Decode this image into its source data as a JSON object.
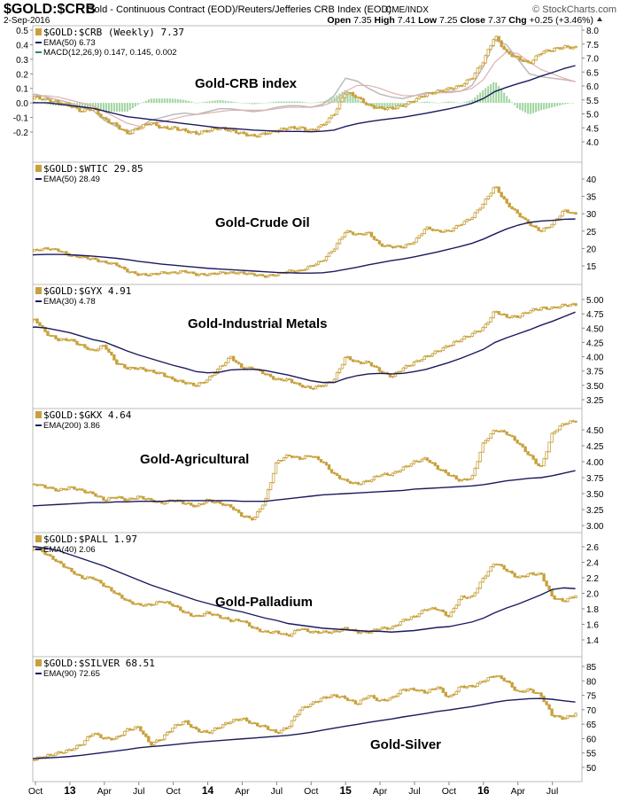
{
  "header": {
    "symbol": "$GOLD:$CRB",
    "description": "Gold - Continuous Contract (EOD)/Reuters/Jefferies CRB Index (EOD)",
    "exchange": "CME/INDX",
    "brand": "© StockCharts.com",
    "date": "2-Sep-2016",
    "ohlc": {
      "open_label": "Open",
      "open": "7.35",
      "high_label": "High",
      "high": "7.41",
      "low_label": "Low",
      "low": "7.25",
      "close_label": "Close",
      "close": "7.37",
      "chg_label": "Chg",
      "chg": "+0.25 (+3.46%)"
    }
  },
  "x_axis": {
    "ticks": [
      "Oct",
      "13",
      "Apr",
      "Jul",
      "Oct",
      "14",
      "Apr",
      "Jul",
      "Oct",
      "15",
      "Apr",
      "Jul",
      "Oct",
      "16",
      "Apr",
      "Jul"
    ],
    "year_ticks": [
      "13",
      "14",
      "15",
      "16"
    ],
    "range": [
      "Sep 2012",
      "Sep 2016"
    ]
  },
  "colors": {
    "price": "#c8a13c",
    "ema": "#1a1a5e",
    "macd_hist": "#9fd49f",
    "macd_line": "#bbbbbb",
    "signal_line": "#e0b0b0",
    "grid": "#cccccc"
  },
  "chart_data": [
    {
      "type": "candlestick",
      "title": "Gold-CRB index",
      "legend": [
        "$GOLD:$CRB (Weekly) 7.37",
        "EMA(50) 6.73",
        "MACD(12,26,9) 0.147, 0.145, 0.002"
      ],
      "ylim": [
        4.0,
        8.0
      ],
      "y_ticks": [
        "8.0",
        "7.5",
        "7.0",
        "6.5",
        "6.0",
        "5.5",
        "5.0",
        "4.5",
        "4.0"
      ],
      "left_ylim": [
        -0.2,
        0.5
      ],
      "left_ticks": [
        "0.5",
        "0.4",
        "0.3",
        "0.2",
        "0.1",
        "0.0",
        "-0.1",
        "-0.2"
      ],
      "price": [
        5.5,
        5.6,
        5.5,
        5.4,
        5.3,
        5.1,
        5.2,
        4.8,
        4.6,
        4.3,
        4.5,
        4.7,
        4.5,
        4.5,
        4.4,
        4.3,
        4.4,
        4.5,
        4.4,
        4.3,
        4.2,
        4.3,
        4.4,
        4.5,
        4.5,
        4.4,
        4.6,
        5.0,
        5.8,
        5.6,
        5.3,
        5.2,
        5.2,
        5.3,
        5.5,
        5.7,
        5.8,
        5.9,
        6.0,
        6.3,
        6.9,
        7.8,
        7.2,
        7.0,
        6.8,
        7.2,
        7.3,
        7.4,
        7.37
      ],
      "ema": [
        5.4,
        5.4,
        5.4,
        5.35,
        5.3,
        5.25,
        5.2,
        5.1,
        5.0,
        4.9,
        4.85,
        4.8,
        4.75,
        4.7,
        4.65,
        4.6,
        4.55,
        4.5,
        4.48,
        4.45,
        4.42,
        4.4,
        4.38,
        4.37,
        4.37,
        4.36,
        4.38,
        4.42,
        4.55,
        4.65,
        4.72,
        4.78,
        4.83,
        4.88,
        4.95,
        5.02,
        5.1,
        5.18,
        5.27,
        5.38,
        5.55,
        5.8,
        5.95,
        6.08,
        6.2,
        6.35,
        6.48,
        6.62,
        6.73
      ],
      "macd": [
        0.05,
        0.06,
        0.04,
        0.02,
        0,
        -0.03,
        -0.05,
        -0.12,
        -0.16,
        -0.2,
        -0.17,
        -0.12,
        -0.1,
        -0.08,
        -0.07,
        -0.08,
        -0.06,
        -0.04,
        -0.04,
        -0.05,
        -0.06,
        -0.05,
        -0.03,
        -0.02,
        -0.02,
        -0.03,
        -0.01,
        0.05,
        0.17,
        0.15,
        0.1,
        0.06,
        0.04,
        0.03,
        0.05,
        0.07,
        0.07,
        0.08,
        0.08,
        0.12,
        0.25,
        0.43,
        0.4,
        0.3,
        0.2,
        0.18,
        0.17,
        0.16,
        0.147
      ],
      "signal": [
        0.04,
        0.05,
        0.05,
        0.04,
        0.02,
        0,
        -0.02,
        -0.06,
        -0.1,
        -0.14,
        -0.16,
        -0.15,
        -0.13,
        -0.11,
        -0.09,
        -0.08,
        -0.07,
        -0.06,
        -0.05,
        -0.05,
        -0.05,
        -0.05,
        -0.04,
        -0.03,
        -0.03,
        -0.03,
        -0.02,
        0.01,
        0.08,
        0.12,
        0.12,
        0.1,
        0.07,
        0.05,
        0.05,
        0.06,
        0.07,
        0.07,
        0.08,
        0.1,
        0.16,
        0.28,
        0.35,
        0.34,
        0.28,
        0.23,
        0.2,
        0.17,
        0.145
      ]
    },
    {
      "type": "candlestick",
      "title": "Gold-Crude Oil",
      "legend": [
        "$GOLD:$WTIC 29.85",
        "EMA(50) 28.49"
      ],
      "ylim": [
        10,
        45
      ],
      "y_ticks": [
        "40",
        "35",
        "30",
        "25",
        "20",
        "15"
      ],
      "price": [
        19,
        19.5,
        20,
        19.5,
        18,
        17.5,
        17,
        16,
        15.5,
        13.5,
        12.5,
        12.5,
        13,
        13,
        13.5,
        12.5,
        12.5,
        13,
        13,
        13,
        12.5,
        12,
        12.5,
        13.5,
        13.5,
        15,
        16.5,
        20,
        25,
        24,
        24.5,
        21,
        20.5,
        20.5,
        22,
        26,
        25,
        25,
        27,
        29,
        33,
        38,
        33,
        30,
        27,
        25,
        27,
        31,
        29.85
      ],
      "ema": [
        18,
        18.2,
        18.3,
        18.3,
        18.2,
        18,
        17.8,
        17.5,
        17.2,
        16.8,
        16.3,
        15.9,
        15.5,
        15.2,
        14.9,
        14.6,
        14.3,
        14.1,
        13.9,
        13.7,
        13.5,
        13.3,
        13.1,
        13.0,
        12.9,
        12.9,
        13.0,
        13.4,
        14.0,
        14.6,
        15.3,
        15.9,
        16.5,
        17.0,
        17.6,
        18.3,
        19.0,
        19.8,
        20.6,
        21.5,
        22.7,
        24.2,
        25.6,
        26.7,
        27.5,
        27.9,
        28.1,
        28.4,
        28.49
      ]
    },
    {
      "type": "candlestick",
      "title": "Gold-Industrial Metals",
      "legend": [
        "$GOLD:$GYX 4.91",
        "EMA(30) 4.78"
      ],
      "ylim": [
        3.1,
        5.15
      ],
      "y_ticks": [
        "5.00",
        "4.75",
        "4.50",
        "4.25",
        "4.00",
        "3.75",
        "3.50",
        "3.25"
      ],
      "price": [
        4.6,
        4.65,
        4.4,
        4.3,
        4.3,
        4.2,
        4.1,
        4.2,
        3.9,
        3.8,
        3.8,
        3.75,
        3.7,
        3.6,
        3.55,
        3.5,
        3.6,
        3.8,
        4.0,
        3.8,
        3.8,
        3.7,
        3.6,
        3.6,
        3.5,
        3.45,
        3.5,
        3.6,
        4.0,
        3.9,
        3.9,
        3.75,
        3.65,
        3.8,
        3.9,
        4.0,
        4.1,
        4.2,
        4.3,
        4.4,
        4.5,
        4.8,
        4.7,
        4.7,
        4.8,
        4.85,
        4.85,
        4.9,
        4.91
      ],
      "ema": [
        4.5,
        4.52,
        4.5,
        4.46,
        4.42,
        4.36,
        4.3,
        4.26,
        4.18,
        4.1,
        4.03,
        3.97,
        3.91,
        3.85,
        3.8,
        3.74,
        3.72,
        3.73,
        3.77,
        3.78,
        3.78,
        3.76,
        3.72,
        3.68,
        3.63,
        3.58,
        3.55,
        3.55,
        3.62,
        3.67,
        3.7,
        3.71,
        3.7,
        3.71,
        3.74,
        3.78,
        3.84,
        3.9,
        3.97,
        4.05,
        4.13,
        4.25,
        4.33,
        4.4,
        4.47,
        4.55,
        4.62,
        4.7,
        4.78
      ]
    },
    {
      "type": "candlestick",
      "title": "Gold-Agricultural",
      "legend": [
        "$GOLD:$GKX 4.64",
        "EMA(200) 3.86"
      ],
      "ylim": [
        2.9,
        4.85
      ],
      "y_ticks": [
        "4.50",
        "4.25",
        "4.00",
        "3.75",
        "3.50",
        "3.25",
        "3.00"
      ],
      "price": [
        3.6,
        3.65,
        3.6,
        3.55,
        3.6,
        3.55,
        3.5,
        3.4,
        3.45,
        3.4,
        3.45,
        3.4,
        3.35,
        3.4,
        3.35,
        3.3,
        3.4,
        3.35,
        3.3,
        3.15,
        3.1,
        3.4,
        4.0,
        4.1,
        4.05,
        4.1,
        4.0,
        3.8,
        3.7,
        3.65,
        3.7,
        3.8,
        3.8,
        3.9,
        4.0,
        4.05,
        3.9,
        3.8,
        3.7,
        3.75,
        4.3,
        4.5,
        4.45,
        4.3,
        4.1,
        3.9,
        4.45,
        4.6,
        4.64
      ],
      "ema": [
        3.3,
        3.31,
        3.32,
        3.33,
        3.34,
        3.35,
        3.36,
        3.36,
        3.37,
        3.37,
        3.38,
        3.38,
        3.38,
        3.39,
        3.39,
        3.39,
        3.39,
        3.39,
        3.39,
        3.38,
        3.38,
        3.38,
        3.4,
        3.42,
        3.44,
        3.46,
        3.48,
        3.49,
        3.5,
        3.51,
        3.52,
        3.53,
        3.54,
        3.55,
        3.57,
        3.58,
        3.59,
        3.6,
        3.61,
        3.62,
        3.64,
        3.67,
        3.7,
        3.72,
        3.74,
        3.75,
        3.78,
        3.82,
        3.86
      ]
    },
    {
      "type": "candlestick",
      "title": "Gold-Palladium",
      "legend": [
        "$GOLD:$PALL 1.97",
        "EMA(40) 2.06"
      ],
      "ylim": [
        1.3,
        2.8
      ],
      "y_ticks": [
        "2.6",
        "2.4",
        "2.2",
        "2.0",
        "1.8",
        "1.6",
        "1.4"
      ],
      "price": [
        2.45,
        2.6,
        2.5,
        2.4,
        2.3,
        2.2,
        2.2,
        2.1,
        2.0,
        1.9,
        1.85,
        1.85,
        1.9,
        1.85,
        1.75,
        1.7,
        1.75,
        1.7,
        1.65,
        1.65,
        1.55,
        1.5,
        1.5,
        1.45,
        1.55,
        1.5,
        1.5,
        1.5,
        1.55,
        1.5,
        1.5,
        1.55,
        1.55,
        1.65,
        1.7,
        1.8,
        1.8,
        1.7,
        1.95,
        1.95,
        2.2,
        2.4,
        2.3,
        2.2,
        2.25,
        2.25,
        1.95,
        1.9,
        1.97
      ],
      "ema": [
        2.6,
        2.6,
        2.58,
        2.55,
        2.5,
        2.45,
        2.4,
        2.35,
        2.29,
        2.23,
        2.17,
        2.11,
        2.06,
        2.01,
        1.96,
        1.91,
        1.87,
        1.83,
        1.79,
        1.76,
        1.72,
        1.68,
        1.65,
        1.61,
        1.59,
        1.57,
        1.55,
        1.54,
        1.53,
        1.52,
        1.51,
        1.51,
        1.5,
        1.51,
        1.52,
        1.54,
        1.56,
        1.57,
        1.6,
        1.63,
        1.68,
        1.75,
        1.81,
        1.86,
        1.92,
        1.98,
        2.05,
        2.07,
        2.06
      ]
    },
    {
      "type": "candlestick",
      "title": "Gold-Silver",
      "legend": [
        "$GOLD:$SILVER 68.51",
        "EMA(90) 72.65"
      ],
      "ylim": [
        47,
        88
      ],
      "y_ticks": [
        "85",
        "80",
        "75",
        "70",
        "65",
        "60",
        "55",
        "50"
      ],
      "price": [
        52,
        53,
        54,
        55,
        56,
        58,
        62,
        60,
        60,
        63,
        64,
        58,
        60,
        64,
        66,
        63,
        62,
        64,
        66,
        67,
        65,
        64,
        62,
        64,
        70,
        72,
        74,
        75,
        74,
        72,
        75,
        73,
        74,
        77,
        77,
        76,
        78,
        74,
        78,
        78,
        80,
        82,
        80,
        76,
        77,
        75,
        68,
        67,
        68.51
      ],
      "ema": [
        53,
        53.1,
        53.3,
        53.5,
        53.8,
        54.2,
        54.7,
        55.2,
        55.7,
        56.2,
        56.8,
        57.2,
        57.5,
        57.9,
        58.3,
        58.7,
        59,
        59.3,
        59.6,
        59.9,
        60.2,
        60.5,
        60.8,
        61.1,
        61.6,
        62.2,
        62.9,
        63.6,
        64.3,
        64.9,
        65.6,
        66.2,
        66.8,
        67.5,
        68.1,
        68.7,
        69.4,
        69.9,
        70.5,
        71.1,
        71.8,
        72.6,
        73.2,
        73.5,
        73.8,
        73.9,
        73.6,
        73.1,
        72.65
      ]
    }
  ]
}
